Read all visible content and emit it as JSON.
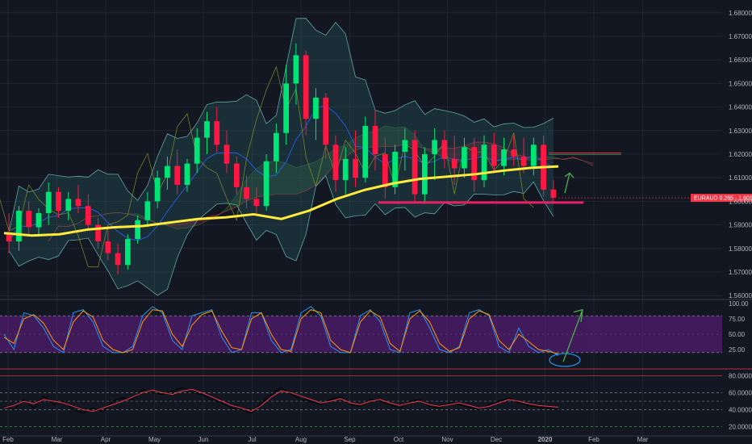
{
  "chart_data": {
    "type": "candlestick",
    "symbol": "EURAUD",
    "price_tag": {
      "label": "EURAUD",
      "change": "0.265",
      "price": "1.60147",
      "value": 1.60147
    },
    "x_ticks": [
      "Feb",
      "Mar",
      "Apr",
      "May",
      "Jun",
      "Jul",
      "Aug",
      "Sep",
      "Oct",
      "Nov",
      "Dec",
      "2020",
      "Feb",
      "Mar"
    ],
    "price_pane": {
      "y_ticks": [
        "1.68000",
        "1.67000",
        "1.66000",
        "1.65000",
        "1.64000",
        "1.63000",
        "1.62000",
        "1.61000",
        "1.60000",
        "1.59000",
        "1.58000",
        "1.57000",
        "1.56000"
      ],
      "ylim": [
        1.558,
        1.682
      ],
      "support_level": 1.5995,
      "moving_average_200": [
        [
          0,
          1.5865
        ],
        [
          0.05,
          1.5855
        ],
        [
          0.1,
          1.586
        ],
        [
          0.15,
          1.588
        ],
        [
          0.2,
          1.589
        ],
        [
          0.25,
          1.5895
        ],
        [
          0.3,
          1.591
        ],
        [
          0.35,
          1.5925
        ],
        [
          0.4,
          1.5932
        ],
        [
          0.45,
          1.5945
        ],
        [
          0.5,
          1.5925
        ],
        [
          0.55,
          1.596
        ],
        [
          0.6,
          1.601
        ],
        [
          0.65,
          1.6048
        ],
        [
          0.7,
          1.6075
        ],
        [
          0.75,
          1.6095
        ],
        [
          0.8,
          1.6105
        ],
        [
          0.85,
          1.6115
        ],
        [
          0.9,
          1.613
        ],
        [
          0.95,
          1.6142
        ],
        [
          1.0,
          1.6148
        ]
      ],
      "candles": [
        [
          1.586,
          1.595,
          1.578,
          1.583
        ],
        [
          1.583,
          1.598,
          1.579,
          1.596
        ],
        [
          1.596,
          1.6,
          1.586,
          1.589
        ],
        [
          1.589,
          1.597,
          1.585,
          1.595
        ],
        [
          1.595,
          1.608,
          1.59,
          1.604
        ],
        [
          1.604,
          1.606,
          1.593,
          1.596
        ],
        [
          1.596,
          1.604,
          1.592,
          1.601
        ],
        [
          1.601,
          1.607,
          1.595,
          1.598
        ],
        [
          1.598,
          1.603,
          1.588,
          1.59
        ],
        [
          1.59,
          1.593,
          1.58,
          1.583
        ],
        [
          1.583,
          1.589,
          1.575,
          1.578
        ],
        [
          1.578,
          1.582,
          1.569,
          1.573
        ],
        [
          1.573,
          1.586,
          1.571,
          1.584
        ],
        [
          1.584,
          1.594,
          1.582,
          1.592
        ],
        [
          1.592,
          1.604,
          1.589,
          1.6
        ],
        [
          1.6,
          1.613,
          1.597,
          1.61
        ],
        [
          1.61,
          1.619,
          1.605,
          1.615
        ],
        [
          1.615,
          1.622,
          1.603,
          1.607
        ],
        [
          1.607,
          1.618,
          1.604,
          1.616
        ],
        [
          1.616,
          1.631,
          1.612,
          1.627
        ],
        [
          1.627,
          1.638,
          1.62,
          1.634
        ],
        [
          1.634,
          1.64,
          1.621,
          1.624
        ],
        [
          1.624,
          1.63,
          1.612,
          1.616
        ],
        [
          1.616,
          1.619,
          1.603,
          1.606
        ],
        [
          1.606,
          1.611,
          1.597,
          1.601
        ],
        [
          1.601,
          1.606,
          1.594,
          1.598
        ],
        [
          1.598,
          1.62,
          1.596,
          1.617
        ],
        [
          1.617,
          1.633,
          1.612,
          1.629
        ],
        [
          1.629,
          1.658,
          1.624,
          1.65
        ],
        [
          1.65,
          1.667,
          1.641,
          1.662
        ],
        [
          1.662,
          1.664,
          1.628,
          1.635
        ],
        [
          1.635,
          1.648,
          1.626,
          1.644
        ],
        [
          1.644,
          1.646,
          1.618,
          1.624
        ],
        [
          1.624,
          1.628,
          1.604,
          1.609
        ],
        [
          1.609,
          1.623,
          1.603,
          1.618
        ],
        [
          1.618,
          1.63,
          1.606,
          1.61
        ],
        [
          1.61,
          1.636,
          1.608,
          1.632
        ],
        [
          1.632,
          1.639,
          1.613,
          1.62
        ],
        [
          1.62,
          1.627,
          1.601,
          1.606
        ],
        [
          1.606,
          1.624,
          1.603,
          1.621
        ],
        [
          1.621,
          1.631,
          1.613,
          1.626
        ],
        [
          1.626,
          1.63,
          1.599,
          1.603
        ],
        [
          1.603,
          1.623,
          1.599,
          1.62
        ],
        [
          1.62,
          1.631,
          1.609,
          1.626
        ],
        [
          1.626,
          1.63,
          1.614,
          1.618
        ],
        [
          1.618,
          1.628,
          1.607,
          1.614
        ],
        [
          1.614,
          1.627,
          1.61,
          1.623
        ],
        [
          1.623,
          1.627,
          1.604,
          1.609
        ],
        [
          1.609,
          1.628,
          1.606,
          1.624
        ],
        [
          1.624,
          1.629,
          1.612,
          1.615
        ],
        [
          1.615,
          1.627,
          1.611,
          1.622
        ],
        [
          1.622,
          1.628,
          1.615,
          1.619
        ],
        [
          1.619,
          1.627,
          1.612,
          1.615
        ],
        [
          1.615,
          1.627,
          1.611,
          1.624
        ],
        [
          1.624,
          1.628,
          1.602,
          1.605
        ],
        [
          1.605,
          1.609,
          1.599,
          1.6015
        ]
      ]
    },
    "stoch_rsi_pane": {
      "y_ticks": [
        "100.00",
        "75.00",
        "50.00",
        "25.00"
      ],
      "ylim": [
        0,
        100
      ],
      "band": [
        20,
        80
      ],
      "k_series": [
        50,
        25,
        85,
        80,
        60,
        30,
        20,
        85,
        90,
        70,
        30,
        20,
        20,
        30,
        80,
        95,
        85,
        40,
        25,
        80,
        85,
        90,
        45,
        20,
        25,
        85,
        85,
        40,
        20,
        25,
        85,
        95,
        80,
        30,
        20,
        20,
        80,
        90,
        70,
        25,
        20,
        85,
        90,
        60,
        25,
        20,
        30,
        85,
        90,
        80,
        30,
        20,
        60,
        30,
        20,
        25,
        15
      ],
      "d_series": [
        45,
        35,
        75,
        82,
        68,
        40,
        25,
        70,
        88,
        78,
        40,
        25,
        20,
        25,
        70,
        90,
        88,
        50,
        30,
        65,
        82,
        88,
        55,
        28,
        25,
        75,
        85,
        50,
        25,
        22,
        75,
        90,
        85,
        40,
        25,
        20,
        70,
        88,
        78,
        35,
        22,
        75,
        88,
        70,
        35,
        22,
        28,
        75,
        88,
        82,
        40,
        25,
        50,
        38,
        25,
        22,
        18
      ]
    },
    "lower_pane": {
      "y_ticks": [
        "80.000000",
        "60.000000",
        "40.000000",
        "20.000000"
      ],
      "ylim": [
        14,
        86
      ],
      "levels": [
        80,
        60,
        50,
        40,
        20
      ],
      "series_red": [
        42,
        45,
        50,
        47,
        52,
        50,
        48,
        44,
        40,
        38,
        42,
        46,
        50,
        55,
        60,
        63,
        60,
        58,
        62,
        64,
        60,
        55,
        50,
        45,
        42,
        38,
        45,
        55,
        62,
        60,
        56,
        52,
        48,
        50,
        53,
        48,
        46,
        50,
        52,
        48,
        45,
        48,
        50,
        46,
        44,
        46,
        48,
        45,
        42,
        44,
        48,
        52,
        50,
        47,
        45,
        44,
        43
      ],
      "series_black": [
        44,
        40,
        52,
        42,
        56,
        46,
        50,
        40,
        36,
        42,
        38,
        50,
        54,
        52,
        64,
        60,
        58,
        62,
        66,
        60,
        58,
        52,
        48,
        42,
        40,
        36,
        48,
        58,
        66,
        58,
        52,
        50,
        46,
        52,
        55,
        46,
        44,
        52,
        50,
        46,
        42,
        50,
        52,
        44,
        42,
        48,
        46,
        43,
        40,
        46,
        50,
        54,
        48,
        45,
        43,
        42,
        40
      ]
    }
  }
}
